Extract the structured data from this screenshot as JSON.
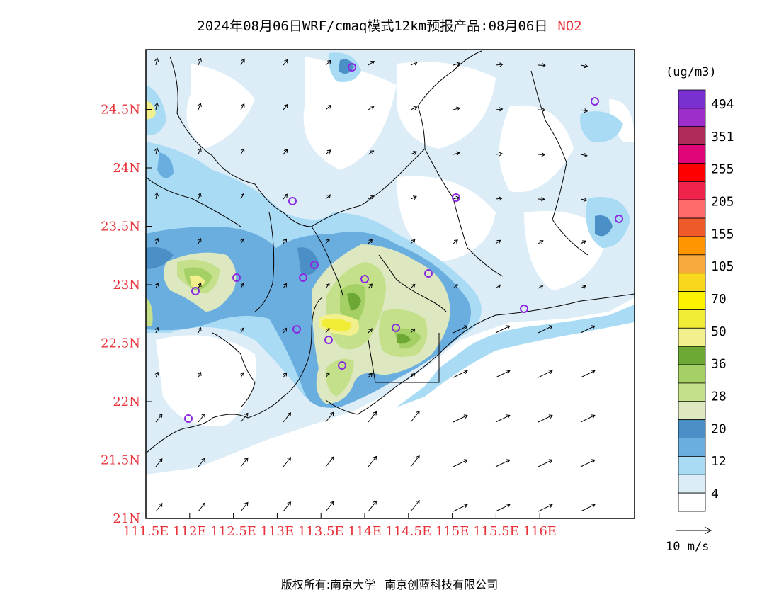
{
  "title": {
    "text": "2024年08月06日WRF/cmaq模式12km预报产品:08月06日",
    "pollutant": "NO2"
  },
  "axes": {
    "x_ticks": [
      "111.5E",
      "112E",
      "112.5E",
      "113E",
      "113.5E",
      "114E",
      "114.5E",
      "115E",
      "115.5E",
      "116E"
    ],
    "y_ticks": [
      "21N",
      "21.5N",
      "22N",
      "22.5N",
      "23N",
      "23.5N",
      "24N",
      "24.5N"
    ],
    "tick_color": "#e8333a"
  },
  "legend": {
    "unit": "(ug/m3)",
    "labels": [
      "4",
      "12",
      "20",
      "28",
      "36",
      "50",
      "70",
      "105",
      "155",
      "205",
      "255",
      "351",
      "494"
    ],
    "colors": [
      "#ffffff",
      "#dcedf8",
      "#a9dbf5",
      "#6aaedf",
      "#4a8fc6",
      "#dde8c0",
      "#c4e08a",
      "#a4d065",
      "#6ca833",
      "#f2f08c",
      "#f1ec36",
      "#fff200",
      "#f7d81c",
      "#f7a93c",
      "#ff9500",
      "#ef5a2a",
      "#ff6a6a",
      "#f0234d",
      "#ff0000",
      "#e1057a",
      "#b02b5a",
      "#9c2fc9",
      "#7a2fd1"
    ]
  },
  "wind_reference": "10 m/s",
  "footer": {
    "copyright": "版权所有:南京大学",
    "company": "南京创蓝科技有限公司"
  },
  "colors": {
    "sea_blue": "#6aaedf",
    "land_pale": "#dcedf8",
    "hot_yellow": "#f2f08c",
    "site_marker": "#8a2be2"
  }
}
